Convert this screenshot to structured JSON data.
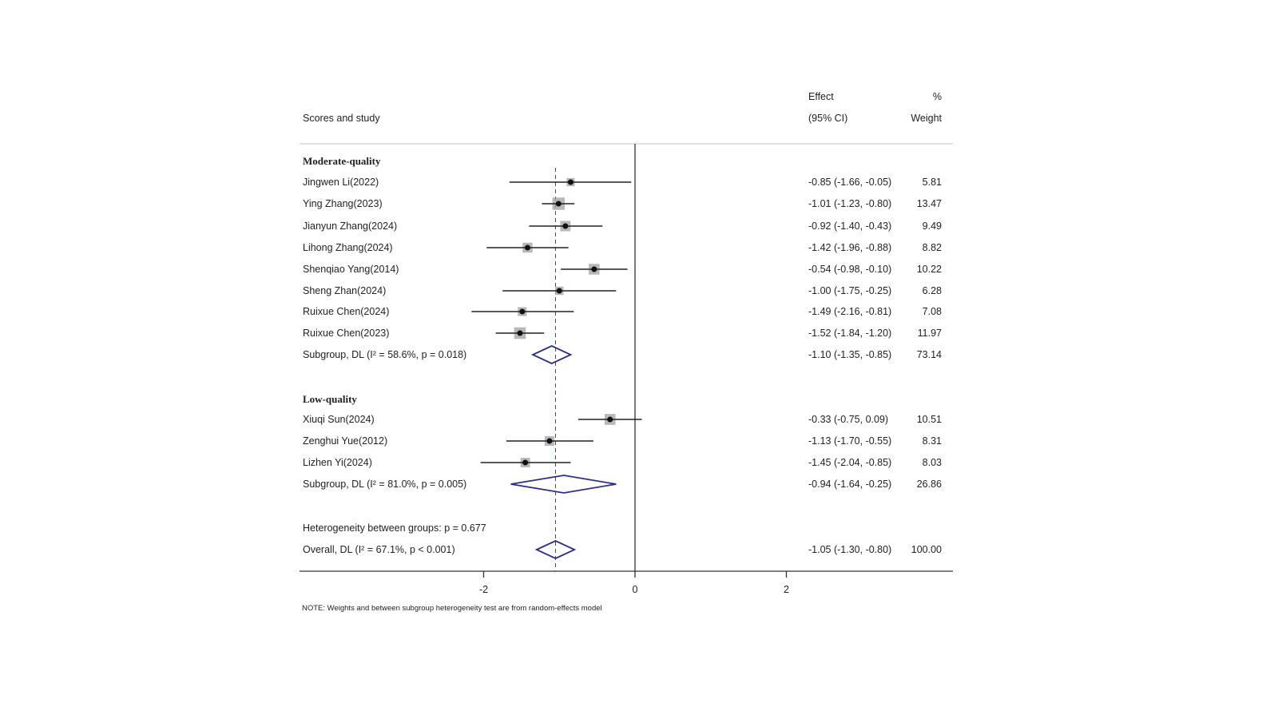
{
  "chart_data": {
    "type": "forest",
    "header": {
      "study_col": "Scores and study",
      "effect_line1": "Effect",
      "effect_line2": "(95% CI)",
      "weight_line1": "%",
      "weight_line2": "Weight"
    },
    "xticks": [
      -2,
      0,
      2
    ],
    "xlim": [
      -4,
      4.2
    ],
    "null_line": 0,
    "overall_effect": -1.05,
    "colors": {
      "diamond": "#2b2f86",
      "ref_line": "#9c2a2a",
      "ci": "#222222",
      "box": "#a0a0a0"
    },
    "groups": [
      {
        "name": "Moderate-quality",
        "studies": [
          {
            "label": "Jingwen Li(2022)",
            "es": -0.85,
            "lo": -1.66,
            "hi": -0.05,
            "text": "-0.85 (-1.66, -0.05)",
            "weight": "5.81"
          },
          {
            "label": "Ying Zhang(2023)",
            "es": -1.01,
            "lo": -1.23,
            "hi": -0.8,
            "text": "-1.01 (-1.23, -0.80)",
            "weight": "13.47"
          },
          {
            "label": "Jianyun Zhang(2024)",
            "es": -0.92,
            "lo": -1.4,
            "hi": -0.43,
            "text": "-0.92 (-1.40, -0.43)",
            "weight": "9.49"
          },
          {
            "label": "Lihong Zhang(2024)",
            "es": -1.42,
            "lo": -1.96,
            "hi": -0.88,
            "text": "-1.42 (-1.96, -0.88)",
            "weight": "8.82"
          },
          {
            "label": "Shenqiao Yang(2014)",
            "es": -0.54,
            "lo": -0.98,
            "hi": -0.1,
            "text": "-0.54 (-0.98, -0.10)",
            "weight": "10.22"
          },
          {
            "label": "Sheng Zhan(2024)",
            "es": -1.0,
            "lo": -1.75,
            "hi": -0.25,
            "text": "-1.00 (-1.75, -0.25)",
            "weight": "6.28"
          },
          {
            "label": "Ruixue Chen(2024)",
            "es": -1.49,
            "lo": -2.16,
            "hi": -0.81,
            "text": "-1.49 (-2.16, -0.81)",
            "weight": "7.08"
          },
          {
            "label": "Ruixue Chen(2023)",
            "es": -1.52,
            "lo": -1.84,
            "hi": -1.2,
            "text": "-1.52 (-1.84, -1.20)",
            "weight": "11.97"
          }
        ],
        "subgroup": {
          "label": "Subgroup, DL (I² = 58.6%, p = 0.018)",
          "es": -1.1,
          "lo": -1.35,
          "hi": -0.85,
          "text": "-1.10 (-1.35, -0.85)",
          "weight": "73.14"
        }
      },
      {
        "name": "Low-quality",
        "studies": [
          {
            "label": "Xiuqi Sun(2024)",
            "es": -0.33,
            "lo": -0.75,
            "hi": 0.09,
            "text": "-0.33 (-0.75, 0.09)",
            "weight": "10.51"
          },
          {
            "label": "Zenghui Yue(2012)",
            "es": -1.13,
            "lo": -1.7,
            "hi": -0.55,
            "text": "-1.13 (-1.70, -0.55)",
            "weight": "8.31"
          },
          {
            "label": "Lizhen Yi(2024)",
            "es": -1.45,
            "lo": -2.04,
            "hi": -0.85,
            "text": "-1.45 (-2.04, -0.85)",
            "weight": "8.03"
          }
        ],
        "subgroup": {
          "label": "Subgroup, DL (I² = 81.0%, p = 0.005)",
          "es": -0.94,
          "lo": -1.64,
          "hi": -0.25,
          "text": "-0.94 (-1.64, -0.25)",
          "weight": "26.86"
        }
      }
    ],
    "heterogeneity": "Heterogeneity between groups: p = 0.677",
    "overall": {
      "label": "Overall, DL (I² = 67.1%, p < 0.001)",
      "es": -1.05,
      "lo": -1.3,
      "hi": -0.8,
      "text": "-1.05 (-1.30, -0.80)",
      "weight": "100.00"
    },
    "note": "NOTE: Weights and between subgroup heterogeneity test are from random-effects model"
  }
}
